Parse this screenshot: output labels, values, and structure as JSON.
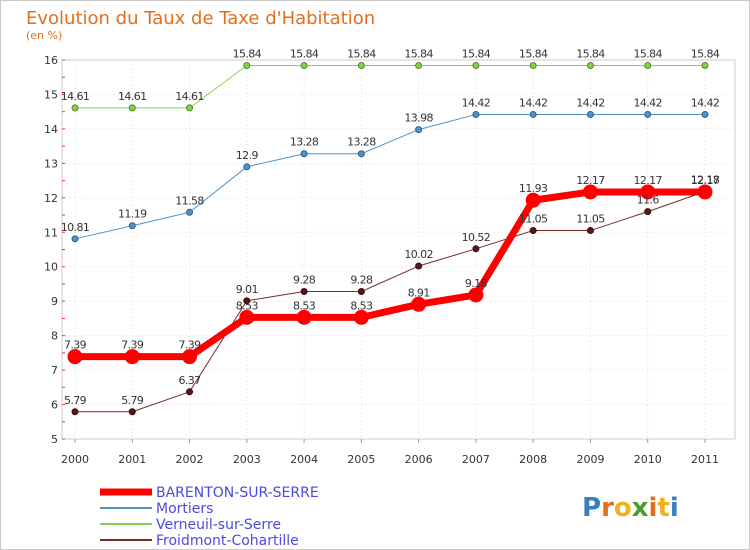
{
  "chart_data": {
    "type": "line",
    "title": "Evolution du Taux de Taxe d'Habitation",
    "subtitle": "(en %)",
    "x": [
      "2000",
      "2001",
      "2002",
      "2003",
      "2004",
      "2005",
      "2006",
      "2007",
      "2008",
      "2009",
      "2010",
      "2011"
    ],
    "ylim": [
      5,
      16
    ],
    "yticks": [
      "5",
      "6",
      "7",
      "8",
      "9",
      "10",
      "11",
      "12",
      "13",
      "14",
      "15",
      "16"
    ],
    "grid": true,
    "legend_position": "bottom-left",
    "series": [
      {
        "name": "BARENTON-SUR-SERRE",
        "color": "#ff0000",
        "values": [
          7.39,
          7.39,
          7.39,
          8.53,
          8.53,
          8.53,
          8.91,
          9.18,
          11.93,
          12.17,
          12.17,
          12.17
        ],
        "labels": [
          "7.39",
          "7.39",
          "7.39",
          "8.53",
          "8.53",
          "8.53",
          "8.91",
          "9.18",
          "11.93",
          "12.17",
          "12.17",
          "12.17"
        ]
      },
      {
        "name": "Mortiers",
        "color": "#4f93c9",
        "values": [
          10.81,
          11.19,
          11.58,
          12.9,
          13.28,
          13.28,
          13.98,
          14.42,
          14.42,
          14.42,
          14.42,
          14.42
        ],
        "labels": [
          "10.81",
          "11.19",
          "11.58",
          "12.9",
          "13.28",
          "13.28",
          "13.98",
          "14.42",
          "14.42",
          "14.42",
          "14.42",
          "14.42"
        ]
      },
      {
        "name": "Verneuil-sur-Serre",
        "color": "#86d14b",
        "values": [
          14.61,
          14.61,
          14.61,
          15.84,
          15.84,
          15.84,
          15.84,
          15.84,
          15.84,
          15.84,
          15.84,
          15.84
        ],
        "labels": [
          "14.61",
          "14.61",
          "14.61",
          "15.84",
          "15.84",
          "15.84",
          "15.84",
          "15.84",
          "15.84",
          "15.84",
          "15.84",
          "15.84"
        ]
      },
      {
        "name": "Froidmont-Cohartille",
        "color": "#7a2a2a",
        "values": [
          5.79,
          5.79,
          6.37,
          9.01,
          9.28,
          9.28,
          10.02,
          10.52,
          11.05,
          11.05,
          11.6,
          12.18
        ],
        "labels": [
          "5.79",
          "5.79",
          "6.37",
          "9.01",
          "9.28",
          "9.28",
          "10.02",
          "10.52",
          "11.05",
          "11.05",
          "11.6",
          "12.18"
        ]
      }
    ]
  },
  "logo": {
    "letters": [
      "P",
      "r",
      "o",
      "x",
      "i",
      "t",
      "i"
    ],
    "colors": [
      "#3a7fc1",
      "#e07020",
      "#f0b020",
      "#4a9a30",
      "#e07020",
      "#f0b020",
      "#3a7fc1"
    ]
  }
}
